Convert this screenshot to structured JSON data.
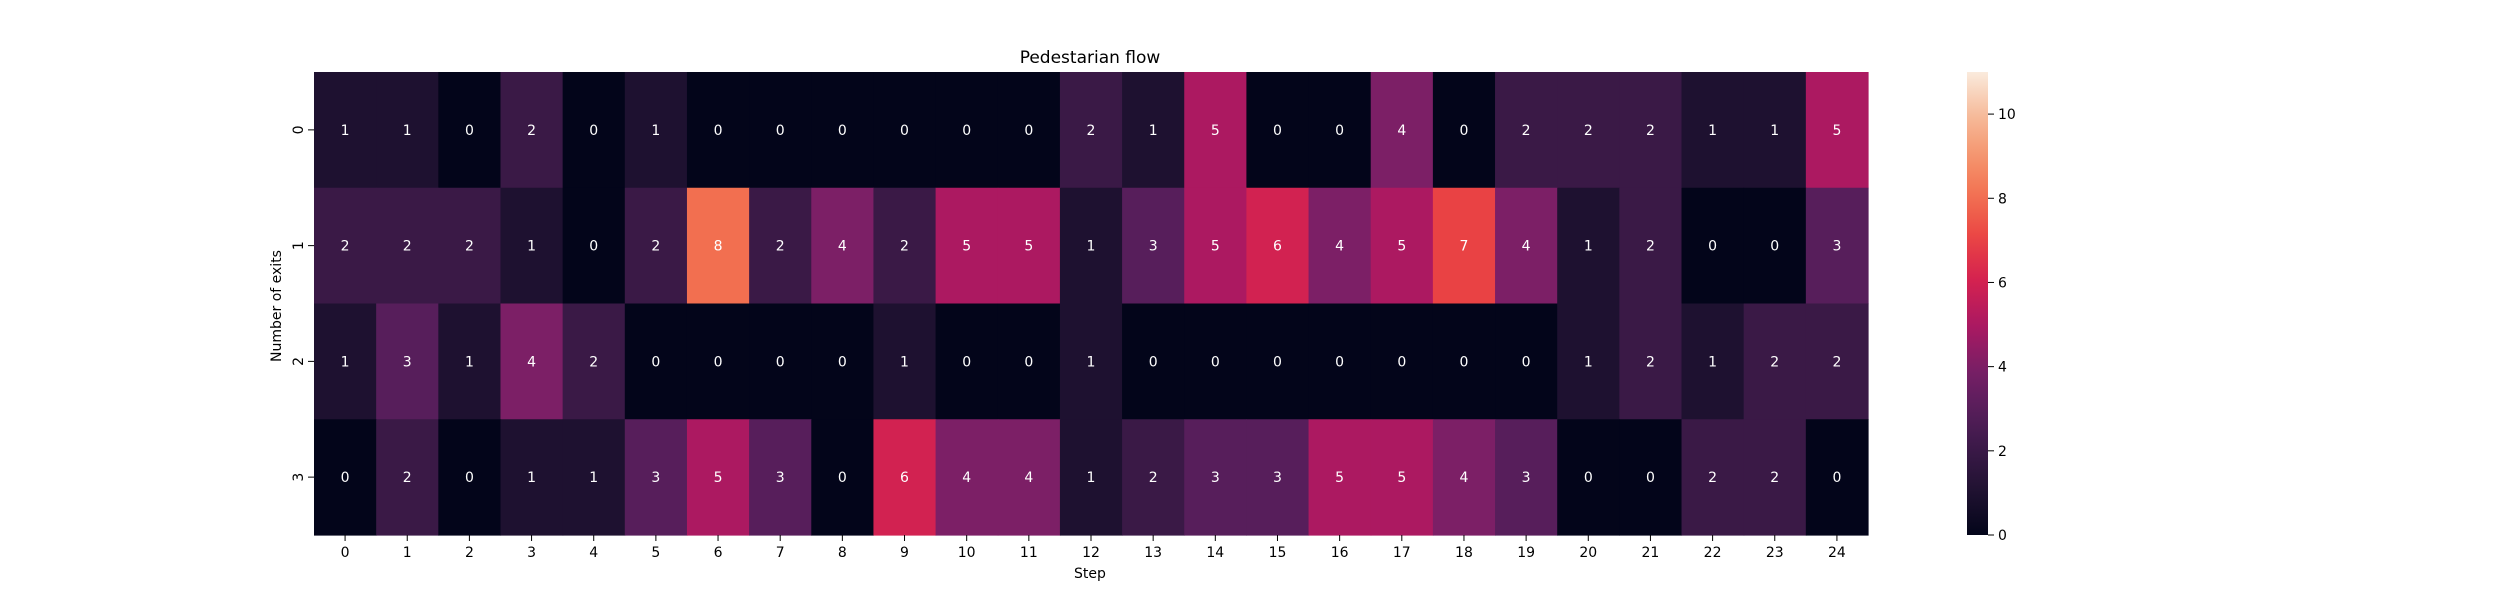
{
  "chart_data": {
    "type": "heatmap",
    "title": "Pedestarian flow",
    "xlabel": "Step",
    "ylabel": "Number of exits",
    "x_categories": [
      "0",
      "1",
      "2",
      "3",
      "4",
      "5",
      "6",
      "7",
      "8",
      "9",
      "10",
      "11",
      "12",
      "13",
      "14",
      "15",
      "16",
      "17",
      "18",
      "19",
      "20",
      "21",
      "22",
      "23",
      "24"
    ],
    "y_categories": [
      "0",
      "1",
      "2",
      "3"
    ],
    "values": [
      [
        1,
        1,
        0,
        2,
        0,
        1,
        0,
        0,
        0,
        0,
        0,
        0,
        2,
        1,
        5,
        0,
        0,
        4,
        0,
        2,
        2,
        2,
        1,
        1,
        5
      ],
      [
        2,
        2,
        2,
        1,
        0,
        2,
        8,
        2,
        4,
        2,
        5,
        5,
        1,
        3,
        5,
        6,
        4,
        5,
        7,
        4,
        1,
        2,
        0,
        0,
        3
      ],
      [
        1,
        3,
        1,
        4,
        2,
        0,
        0,
        0,
        0,
        1,
        0,
        0,
        1,
        0,
        0,
        0,
        0,
        0,
        0,
        0,
        1,
        2,
        1,
        2,
        2
      ],
      [
        0,
        2,
        0,
        1,
        1,
        3,
        5,
        3,
        0,
        6,
        4,
        4,
        1,
        2,
        3,
        3,
        5,
        5,
        4,
        3,
        0,
        0,
        2,
        2,
        0
      ]
    ],
    "colormap": "rocket",
    "colorbar": {
      "min": 0,
      "max": 11,
      "ticks": [
        "0",
        "2",
        "4",
        "6",
        "8",
        "10"
      ]
    },
    "annotations": true,
    "grid": false
  }
}
